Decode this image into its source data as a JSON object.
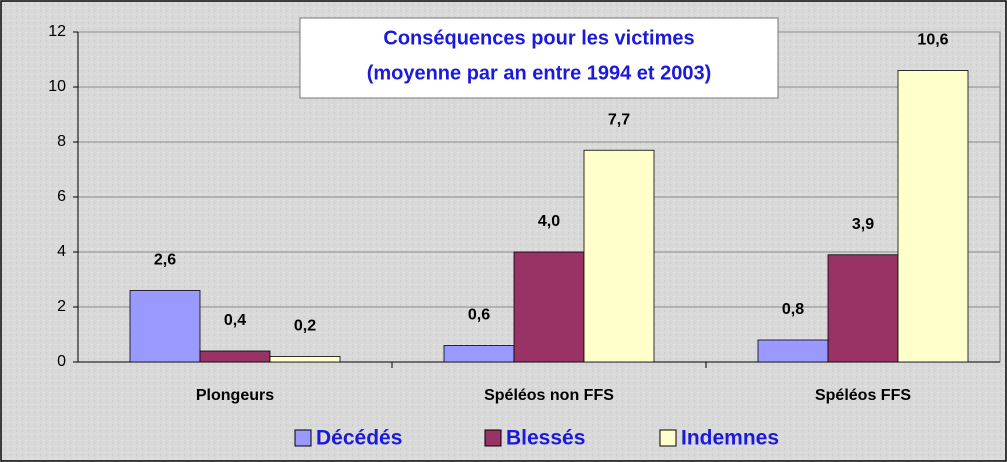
{
  "chart_data": {
    "type": "bar",
    "title": [
      "Conséquences pour les victimes",
      "(moyenne par an entre 1994 et 2003)"
    ],
    "categories": [
      "Plongeurs",
      "Spéléos non FFS",
      "Spéléos FFS"
    ],
    "series": [
      {
        "name": "Décédés",
        "color": "#9999ff",
        "values": [
          2.6,
          0.6,
          0.8
        ],
        "value_labels": [
          "2,6",
          "0,6",
          "0,8"
        ]
      },
      {
        "name": "Blessés",
        "color": "#993366",
        "values": [
          0.4,
          4.0,
          3.9
        ],
        "value_labels": [
          "0,4",
          "4,0",
          "3,9"
        ]
      },
      {
        "name": "Indemnes",
        "color": "#ffffcc",
        "values": [
          0.2,
          7.7,
          10.6
        ],
        "value_labels": [
          "0,2",
          "7,7",
          "10,6"
        ]
      }
    ],
    "ylim": [
      0,
      12
    ],
    "yticks": [
      0,
      2,
      4,
      6,
      8,
      10,
      12
    ],
    "grid": true
  }
}
